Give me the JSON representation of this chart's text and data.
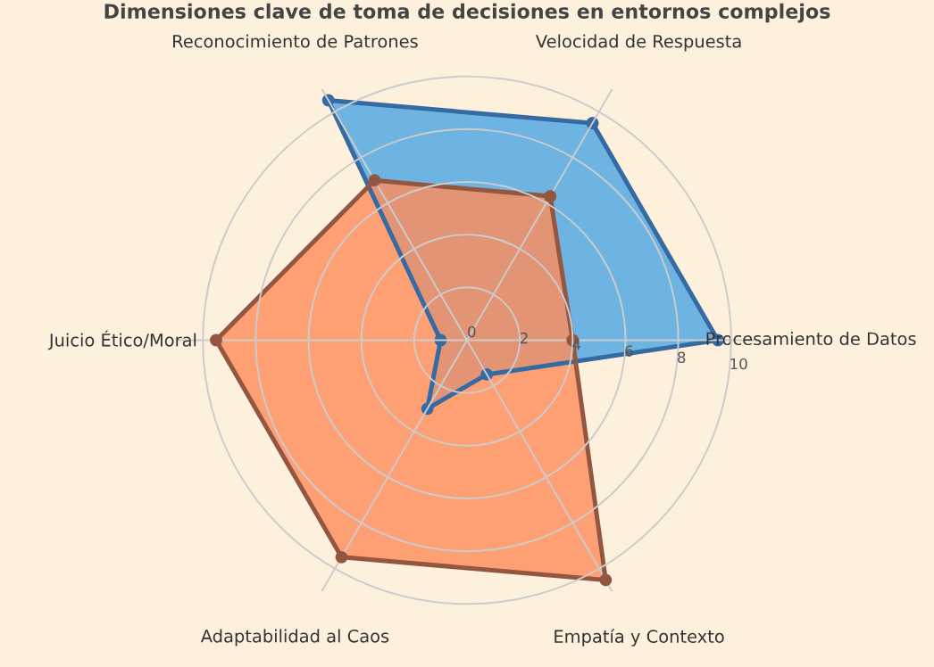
{
  "chart_data": {
    "type": "radar",
    "title": "Dimensiones clave de toma de decisiones en entornos complejos",
    "categories": [
      "Velocidad de Respuesta",
      "Procesamiento de Datos",
      "Empatía y Contexto",
      "Adaptabilidad al Caos",
      "Juicio Ético/Moral",
      "Reconocimiento de Patrones"
    ],
    "series": [
      {
        "color": "#5dade2",
        "values": [
          9.5,
          9.5,
          1.5,
          3,
          1,
          10.5
        ]
      },
      {
        "color": "#ff8c5a",
        "values": [
          6.3,
          4,
          10.5,
          9.5,
          9.5,
          7
        ]
      }
    ],
    "ylim": [
      0,
      11
    ],
    "yticks": [
      0,
      2,
      4,
      6,
      8,
      10
    ],
    "grid": true,
    "marker": "circle"
  }
}
